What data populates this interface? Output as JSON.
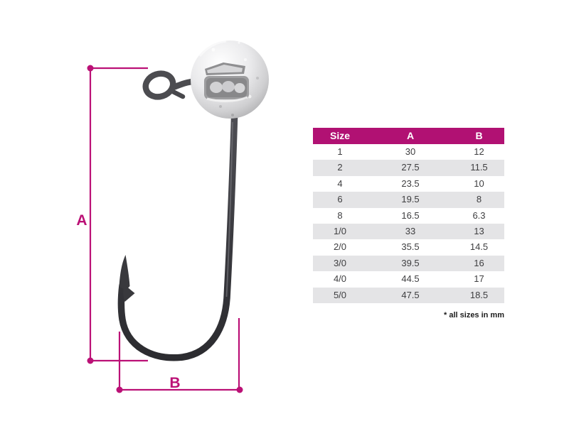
{
  "colors": {
    "header_bg": "#b11173",
    "dim_line": "#bb1176",
    "row_alt": "#e4e4e6",
    "table_text": "#3e3e40",
    "hook_metal_dark": "#35353a",
    "ball_silver": "#d9d9db"
  },
  "diagram": {
    "label_a": "A",
    "label_b": "B"
  },
  "table": {
    "headers": [
      "Size",
      "A",
      "B"
    ],
    "rows": [
      [
        "1",
        "30",
        "12"
      ],
      [
        "2",
        "27.5",
        "11.5"
      ],
      [
        "4",
        "23.5",
        "10"
      ],
      [
        "6",
        "19.5",
        "8"
      ],
      [
        "8",
        "16.5",
        "6.3"
      ],
      [
        "1/0",
        "33",
        "13"
      ],
      [
        "2/0",
        "35.5",
        "14.5"
      ],
      [
        "3/0",
        "39.5",
        "16"
      ],
      [
        "4/0",
        "44.5",
        "17"
      ],
      [
        "5/0",
        "47.5",
        "18.5"
      ]
    ],
    "footnote": "* all sizes in mm"
  }
}
